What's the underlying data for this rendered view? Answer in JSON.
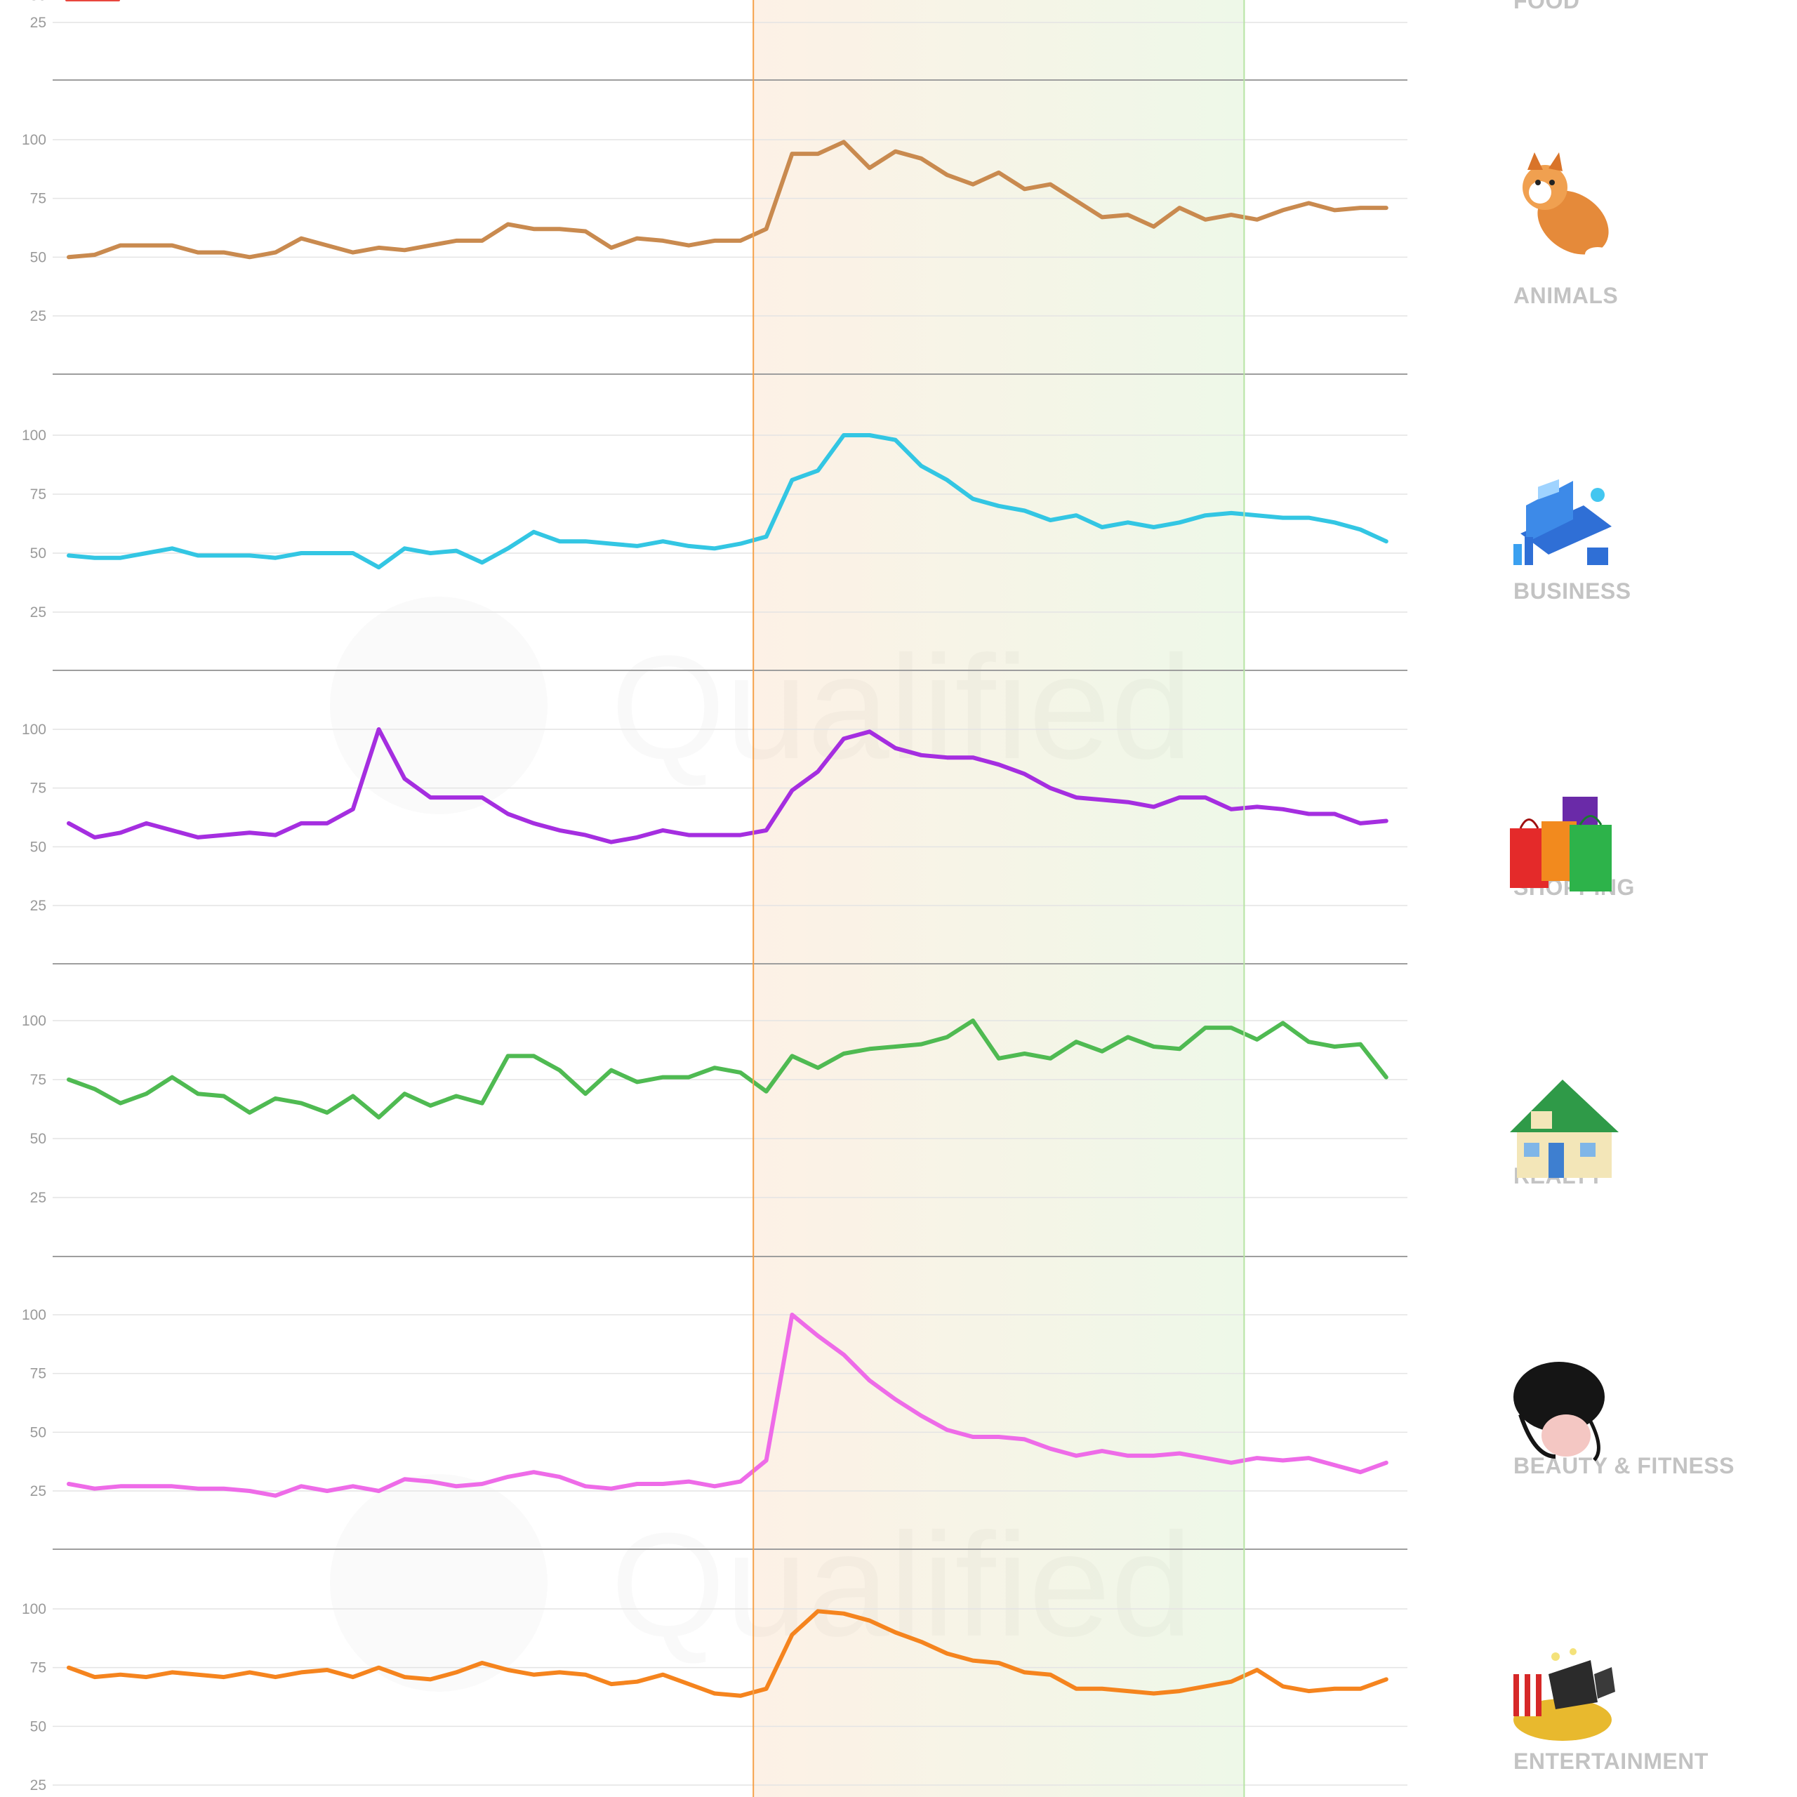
{
  "chart_data": {
    "type": "line",
    "watermark": "Qualified",
    "ylim": [
      0,
      100
    ],
    "yticks": [
      25,
      50,
      75,
      100
    ],
    "xlim": [
      0,
      52
    ],
    "highlight_ranges": [
      {
        "x_start": 26.5,
        "x_end": 45.5,
        "color_start": "#fdf1e6",
        "color_end": "#eef8e8",
        "edge_start_color": "#f5a14a",
        "edge_end_color": "#b7e4a4"
      }
    ],
    "panels": [
      {
        "category": "FOOD",
        "color": "#e8463d",
        "icon": "food-icon",
        "values": []
      },
      {
        "category": "ANIMALS",
        "color": "#c98a4f",
        "icon": "corgi-icon",
        "values": [
          50,
          51,
          55,
          55,
          55,
          52,
          52,
          50,
          52,
          58,
          55,
          52,
          54,
          53,
          55,
          57,
          57,
          64,
          62,
          62,
          61,
          54,
          58,
          57,
          55,
          57,
          57,
          62,
          94,
          94,
          99,
          88,
          95,
          92,
          85,
          81,
          86,
          79,
          81,
          74,
          67,
          68,
          63,
          71,
          66,
          68,
          66,
          70,
          73,
          70,
          71,
          71
        ]
      },
      {
        "category": "BUSINESS",
        "color": "#33c6e3",
        "icon": "business-icon",
        "values": [
          49,
          48,
          48,
          50,
          52,
          49,
          49,
          49,
          48,
          50,
          50,
          50,
          44,
          52,
          50,
          51,
          46,
          52,
          59,
          55,
          55,
          54,
          53,
          55,
          53,
          52,
          54,
          57,
          81,
          85,
          100,
          100,
          98,
          87,
          81,
          73,
          70,
          68,
          64,
          66,
          61,
          63,
          61,
          63,
          66,
          67,
          66,
          65,
          65,
          63,
          60,
          55
        ]
      },
      {
        "category": "SHOPPING",
        "color": "#a52ee0",
        "icon": "shopping-bags-icon",
        "values": [
          60,
          54,
          56,
          60,
          57,
          54,
          55,
          56,
          55,
          60,
          60,
          66,
          100,
          79,
          71,
          71,
          71,
          64,
          60,
          57,
          55,
          52,
          54,
          57,
          55,
          55,
          55,
          57,
          74,
          82,
          96,
          99,
          92,
          89,
          88,
          88,
          85,
          81,
          75,
          71,
          70,
          69,
          67,
          71,
          71,
          66,
          67,
          66,
          64,
          64,
          60,
          61
        ]
      },
      {
        "category": "REALTY",
        "color": "#4fba52",
        "icon": "house-icon",
        "values": [
          75,
          71,
          65,
          69,
          76,
          69,
          68,
          61,
          67,
          65,
          61,
          68,
          59,
          69,
          64,
          68,
          65,
          85,
          85,
          79,
          69,
          79,
          74,
          76,
          76,
          80,
          78,
          70,
          85,
          80,
          86,
          88,
          89,
          90,
          93,
          100,
          84,
          86,
          84,
          91,
          87,
          93,
          89,
          88,
          97,
          97,
          92,
          99,
          91,
          89,
          90,
          76
        ]
      },
      {
        "category": "BEAUTY & FITNESS",
        "color": "#ee6be8",
        "icon": "woman-portrait-icon",
        "values": [
          28,
          26,
          27,
          27,
          27,
          26,
          26,
          25,
          23,
          27,
          25,
          27,
          25,
          30,
          29,
          27,
          28,
          31,
          33,
          31,
          27,
          26,
          28,
          28,
          29,
          27,
          29,
          38,
          100,
          91,
          83,
          72,
          64,
          57,
          51,
          48,
          48,
          47,
          43,
          40,
          42,
          40,
          40,
          41,
          39,
          37,
          39,
          38,
          39,
          36,
          33,
          37
        ]
      },
      {
        "category": "ENTERTAINMENT",
        "color": "#f5841e",
        "icon": "movie-icon",
        "values": [
          75,
          71,
          72,
          71,
          73,
          72,
          71,
          73,
          71,
          73,
          74,
          71,
          75,
          71,
          70,
          73,
          77,
          74,
          72,
          73,
          72,
          68,
          69,
          72,
          68,
          64,
          63,
          66,
          89,
          99,
          98,
          95,
          90,
          86,
          81,
          78,
          77,
          73,
          72,
          66,
          66,
          65,
          64,
          65,
          67,
          69,
          74,
          67,
          65,
          66,
          66,
          70
        ]
      }
    ]
  }
}
